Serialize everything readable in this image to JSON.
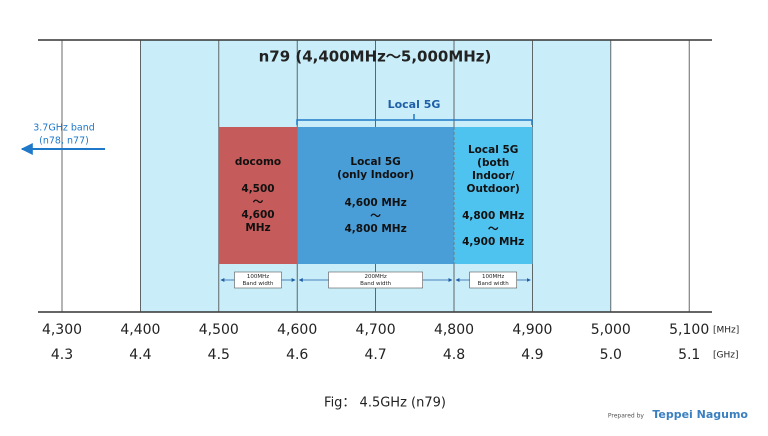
{
  "title": "n79 (4,400MHz～5,000MHz)",
  "left_note": [
    "3.7GHz band",
    "(n78, n77)"
  ],
  "bracket_label": "Local 5G",
  "blocks": [
    {
      "name_lines": [
        "docomo"
      ],
      "range_lines": [
        "4,500",
        "～",
        "4,600",
        "MHz"
      ],
      "bandwidth": [
        "100MHz",
        "Band width"
      ]
    },
    {
      "name_lines": [
        "Local 5G",
        "(only Indoor)"
      ],
      "range_lines": [
        "4,600 MHz",
        "～",
        "4,800 MHz"
      ],
      "bandwidth": [
        "200MHz",
        "Band width"
      ]
    },
    {
      "name_lines": [
        "Local 5G",
        "(both",
        "Indoor/",
        "Outdoor)"
      ],
      "range_lines": [
        "4,800 MHz",
        "～",
        "4,900 MHz"
      ],
      "bandwidth": [
        "100MHz",
        "Band width"
      ]
    }
  ],
  "axis": {
    "mhz_labels": [
      "4,300",
      "4,400",
      "4,500",
      "4,600",
      "4,700",
      "4,800",
      "4,900",
      "5,000",
      "5,100"
    ],
    "ghz_labels": [
      "4.3",
      "4.4",
      "4.5",
      "4.6",
      "4.7",
      "4.8",
      "4.9",
      "5.0",
      "5.1"
    ],
    "mhz_unit": "[MHz]",
    "ghz_unit": "[GHz]"
  },
  "caption": "Fig： 4.5GHz (n79)",
  "credit": {
    "prefix": "Prepared by",
    "name": "Teppei Nagumo"
  }
}
